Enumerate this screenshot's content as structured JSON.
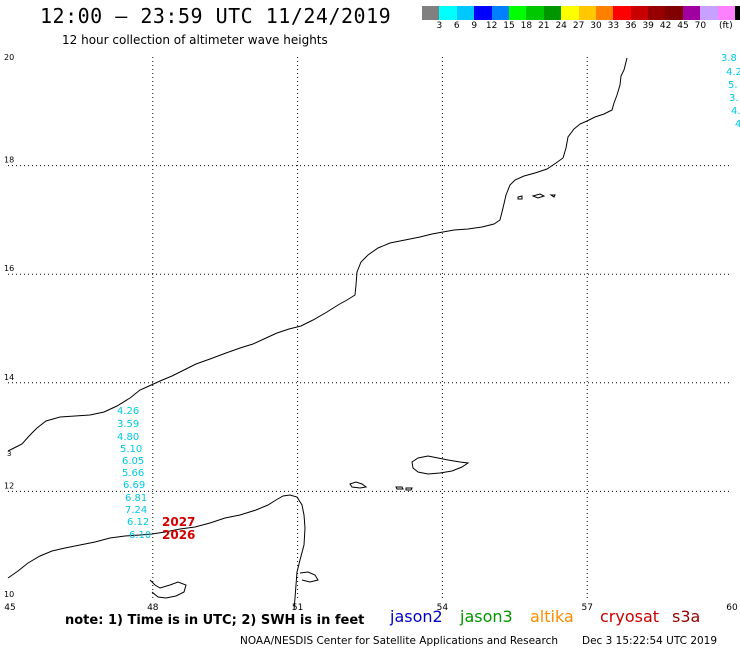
{
  "header": {
    "title": "12:00 – 23:59 UTC 11/24/2019",
    "subtitle": "12 hour collection of altimeter wave heights"
  },
  "scale": {
    "colors": [
      "#808080",
      "#00ffff",
      "#00c8ff",
      "#0000ff",
      "#0080ff",
      "#00ff00",
      "#00c800",
      "#009600",
      "#ffff00",
      "#ffc800",
      "#ff8000",
      "#ff0000",
      "#c80000",
      "#960000",
      "#800000",
      "#a000a0",
      "#c8a0ff",
      "#ff80ff",
      "#000000"
    ],
    "labels": [
      "3",
      "6",
      "9",
      "12",
      "15",
      "18",
      "21",
      "24",
      "27",
      "30",
      "33",
      "36",
      "39",
      "42",
      "45",
      "70",
      "(ft)"
    ]
  },
  "axes": {
    "x_ticks": [
      "45",
      "48",
      "51",
      "54",
      "57",
      "60"
    ],
    "y_ticks": [
      "20",
      "18",
      "16",
      "14",
      "12",
      "10"
    ],
    "x_range": [
      45,
      60
    ],
    "y_range": [
      10,
      20
    ]
  },
  "wave_labels": {
    "track_main": [
      "4.26",
      "3.59",
      "4.80",
      "5.10",
      "6.05",
      "5.66",
      "6.69",
      "6.81",
      "7.24",
      "6.12",
      "6.10"
    ],
    "track_right_top": [
      "3.8",
      "4.2",
      "5.",
      "3.",
      "4.",
      "4"
    ],
    "left_edge": "3"
  },
  "cryosat_labels": [
    "2027",
    "2026"
  ],
  "note": "note: 1) Time is in UTC; 2) SWH is in feet",
  "satellites": [
    {
      "name": "jason2",
      "color": "#0000c8"
    },
    {
      "name": "jason3",
      "color": "#009600"
    },
    {
      "name": "altika",
      "color": "#ff8c00"
    },
    {
      "name": "cryosat",
      "color": "#c80000"
    },
    {
      "name": "s3a",
      "color": "#960000"
    }
  ],
  "footer": {
    "center": "NOAA/NESDIS Center for Satellite Applications and Research",
    "date": "Dec  3 15:22:54 UTC 2019"
  },
  "colors": {
    "track": "#00c8e6",
    "cryosat": "#d20000"
  }
}
